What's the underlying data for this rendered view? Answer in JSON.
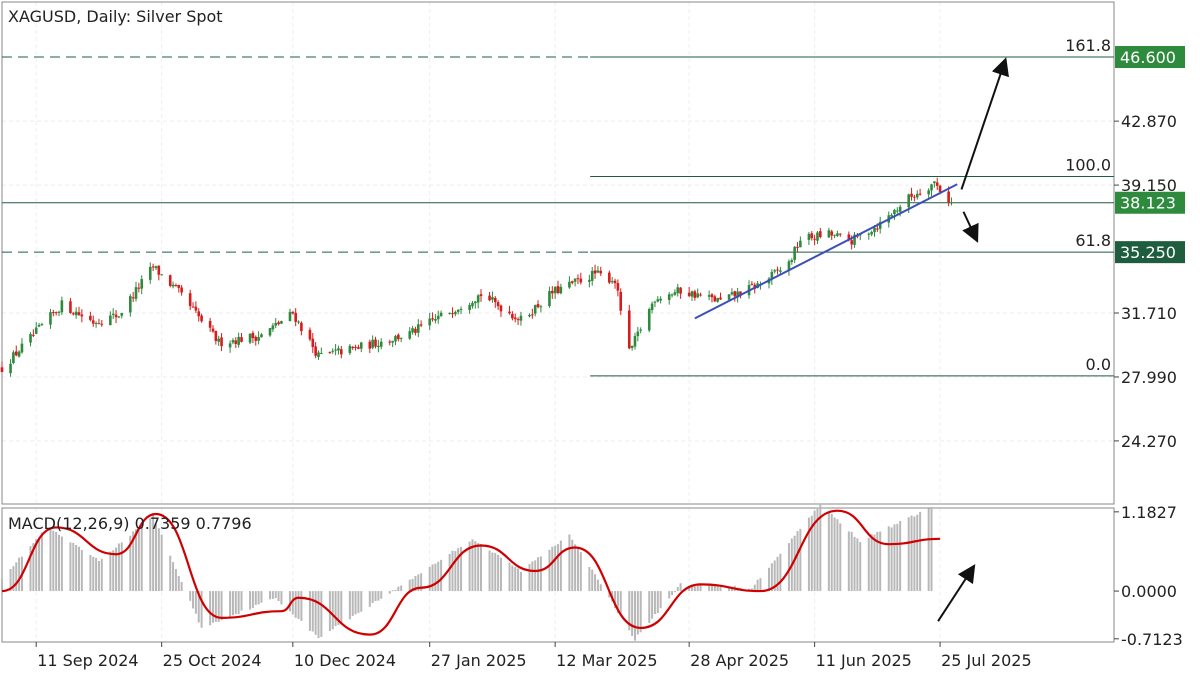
{
  "header": {
    "title": "XAGUSD, Daily:  Silver Spot"
  },
  "colors": {
    "bull": "#2e8b3e",
    "bear": "#d81b1b",
    "fib_line": "#1e5e3e",
    "trendline": "#3a4fb8",
    "macd_signal": "#d00000",
    "histogram": "#b8b8b8",
    "grid": "#eeeeee",
    "tag_green": "#2e8b3e",
    "tag_dark": "#1e5e3e"
  },
  "chart_data": {
    "type": "candlestick",
    "instrument": "XAGUSD",
    "timeframe": "Daily",
    "x_labels": [
      "11 Sep 2024",
      "25 Oct 2024",
      "10 Dec 2024",
      "27 Jan 2025",
      "12 Mar 2025",
      "28 Apr 2025",
      "11 Jun 2025",
      "25 Jul 2025"
    ],
    "y_axis_ticks": [
      "42.870",
      "39.150",
      "31.710",
      "27.990",
      "24.270"
    ],
    "ylim": [
      20.6,
      49.8
    ],
    "price_tags": [
      {
        "label": "46.600",
        "value": 46.6,
        "style": "green"
      },
      {
        "label": "38.123",
        "value": 38.123,
        "style": "green"
      },
      {
        "label": "35.250",
        "value": 35.25,
        "style": "dark"
      }
    ],
    "fibonacci": [
      {
        "level": "161.8",
        "price": 46.6
      },
      {
        "level": "100.0",
        "price": 39.65
      },
      {
        "level": "61.8",
        "price": 35.25
      },
      {
        "level": "0.0",
        "price": 28.05
      }
    ],
    "horizontal_line": 38.123,
    "trendline": [
      {
        "x": "2025-04-30",
        "y": 31.4
      },
      {
        "x": "2025-07-31",
        "y": 39.2
      }
    ],
    "price_path": [
      {
        "x": "2024-08-30",
        "y": 28.5
      },
      {
        "x": "2024-09-11",
        "y": 30.6
      },
      {
        "x": "2024-09-20",
        "y": 32.2
      },
      {
        "x": "2024-10-01",
        "y": 31.2
      },
      {
        "x": "2024-10-10",
        "y": 31.6
      },
      {
        "x": "2024-10-22",
        "y": 34.4
      },
      {
        "x": "2024-10-31",
        "y": 32.9
      },
      {
        "x": "2024-11-14",
        "y": 30.0
      },
      {
        "x": "2024-11-29",
        "y": 30.4
      },
      {
        "x": "2024-12-10",
        "y": 31.7
      },
      {
        "x": "2024-12-19",
        "y": 29.2
      },
      {
        "x": "2025-01-02",
        "y": 29.7
      },
      {
        "x": "2025-01-20",
        "y": 30.5
      },
      {
        "x": "2025-02-05",
        "y": 32.0
      },
      {
        "x": "2025-02-14",
        "y": 32.8
      },
      {
        "x": "2025-02-28",
        "y": 31.3
      },
      {
        "x": "2025-03-11",
        "y": 32.9
      },
      {
        "x": "2025-03-26",
        "y": 34.0
      },
      {
        "x": "2025-04-02",
        "y": 33.6
      },
      {
        "x": "2025-04-07",
        "y": 29.4
      },
      {
        "x": "2025-04-16",
        "y": 32.6
      },
      {
        "x": "2025-04-25",
        "y": 33.0
      },
      {
        "x": "2025-05-09",
        "y": 32.4
      },
      {
        "x": "2025-05-23",
        "y": 33.4
      },
      {
        "x": "2025-06-02",
        "y": 34.6
      },
      {
        "x": "2025-06-06",
        "y": 36.0
      },
      {
        "x": "2025-06-16",
        "y": 36.3
      },
      {
        "x": "2025-06-24",
        "y": 35.9
      },
      {
        "x": "2025-07-04",
        "y": 36.9
      },
      {
        "x": "2025-07-14",
        "y": 38.4
      },
      {
        "x": "2025-07-23",
        "y": 39.3
      },
      {
        "x": "2025-07-29",
        "y": 38.1
      }
    ],
    "projection_arrows": [
      {
        "direction": "up",
        "to_price": 46.6
      },
      {
        "direction": "down",
        "to_price": 35.25
      }
    ],
    "macd": {
      "label": "MACD(12,26,9) 0.7359 0.7796",
      "params": [
        12,
        26,
        9
      ],
      "main_value": 0.7359,
      "signal_value": 0.7796,
      "ylim": [
        -0.76,
        1.24
      ],
      "y_axis_ticks": [
        "1.1827",
        "0.0000",
        "-0.7123"
      ],
      "signal_path": [
        {
          "x": "2024-08-30",
          "y": 0.0
        },
        {
          "x": "2024-09-18",
          "y": 0.95
        },
        {
          "x": "2024-10-09",
          "y": 0.55
        },
        {
          "x": "2024-10-23",
          "y": 1.15
        },
        {
          "x": "2024-11-15",
          "y": -0.4
        },
        {
          "x": "2024-12-06",
          "y": -0.3
        },
        {
          "x": "2024-12-12",
          "y": -0.1
        },
        {
          "x": "2025-01-06",
          "y": -0.65
        },
        {
          "x": "2025-01-24",
          "y": 0.05
        },
        {
          "x": "2025-02-14",
          "y": 0.68
        },
        {
          "x": "2025-03-05",
          "y": 0.3
        },
        {
          "x": "2025-03-19",
          "y": 0.65
        },
        {
          "x": "2025-04-11",
          "y": -0.55
        },
        {
          "x": "2025-05-02",
          "y": 0.1
        },
        {
          "x": "2025-05-23",
          "y": 0.0
        },
        {
          "x": "2025-06-19",
          "y": 1.2
        },
        {
          "x": "2025-07-07",
          "y": 0.7
        },
        {
          "x": "2025-07-25",
          "y": 0.78
        }
      ],
      "histogram": [
        {
          "x": "2024-08-30",
          "y": 0.2
        },
        {
          "x": "2024-09-15",
          "y": 0.95
        },
        {
          "x": "2024-10-03",
          "y": 0.45
        },
        {
          "x": "2024-10-22",
          "y": 1.12
        },
        {
          "x": "2024-11-08",
          "y": -0.55
        },
        {
          "x": "2024-12-04",
          "y": -0.1
        },
        {
          "x": "2024-12-19",
          "y": -0.7
        },
        {
          "x": "2025-01-14",
          "y": 0.0
        },
        {
          "x": "2025-02-11",
          "y": 0.78
        },
        {
          "x": "2025-02-28",
          "y": 0.3
        },
        {
          "x": "2025-03-17",
          "y": 0.85
        },
        {
          "x": "2025-04-09",
          "y": -0.72
        },
        {
          "x": "2025-04-25",
          "y": 0.1
        },
        {
          "x": "2025-05-20",
          "y": 0.05
        },
        {
          "x": "2025-06-13",
          "y": 1.3
        },
        {
          "x": "2025-06-27",
          "y": 0.75
        },
        {
          "x": "2025-07-22",
          "y": 1.25
        }
      ],
      "projection_arrow": {
        "direction": "up"
      }
    }
  }
}
